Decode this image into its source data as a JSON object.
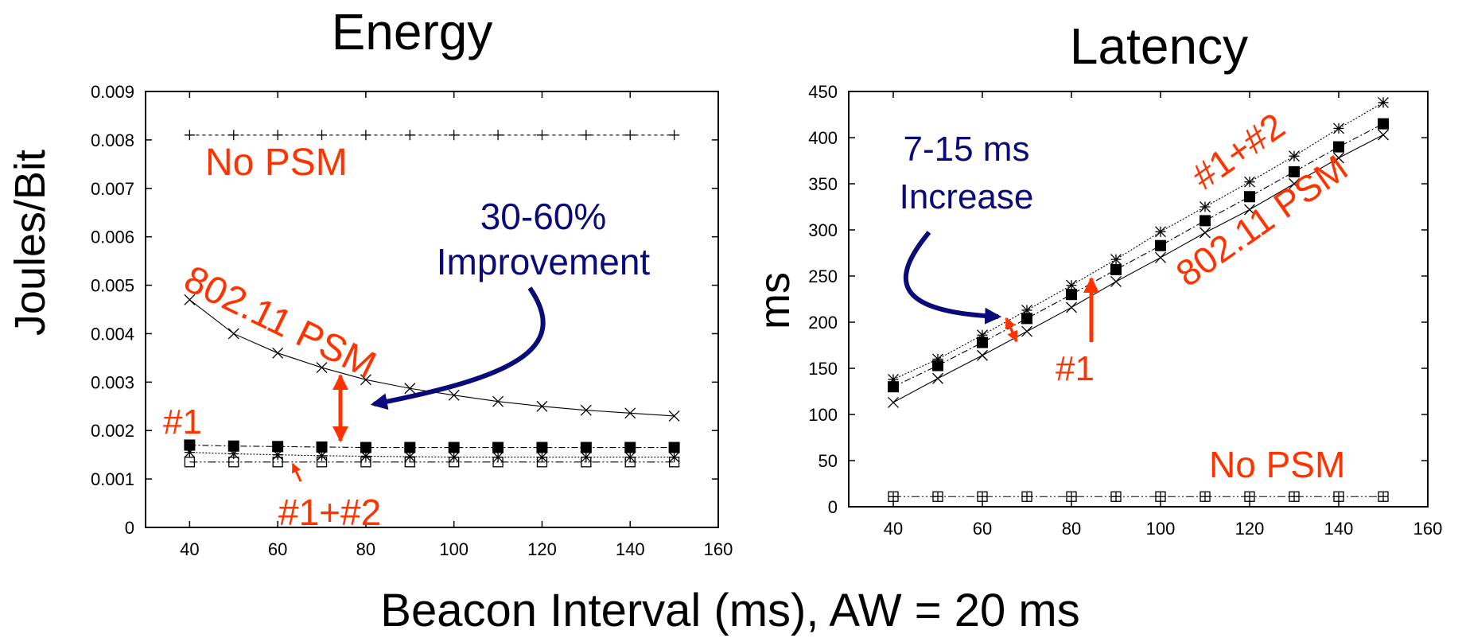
{
  "xlabel": "Beacon Interval (ms), AW = 20 ms",
  "colors": {
    "highlight": "#ff3300",
    "accent": "#0a0a78",
    "series": "#000000"
  },
  "chart_data": [
    {
      "type": "line",
      "title": "Energy",
      "ylabel": "Joules/Bit",
      "xlim": [
        30,
        160
      ],
      "ylim": [
        0,
        0.009
      ],
      "xticks": [
        40,
        60,
        80,
        100,
        120,
        140,
        160
      ],
      "yticks": [
        "0",
        "0.001",
        "0.002",
        "0.003",
        "0.004",
        "0.005",
        "0.006",
        "0.007",
        "0.008",
        "0.009"
      ],
      "x": [
        40,
        50,
        60,
        70,
        80,
        90,
        100,
        110,
        120,
        130,
        140,
        150
      ],
      "series": [
        {
          "marker": "plus",
          "dash": "4,4",
          "values": [
            0.0081,
            0.0081,
            0.0081,
            0.0081,
            0.0081,
            0.0081,
            0.0081,
            0.0081,
            0.0081,
            0.0081,
            0.0081,
            0.0081
          ]
        },
        {
          "marker": "cross",
          "dash": "",
          "values": [
            0.0047,
            0.004,
            0.0036,
            0.0033,
            0.00305,
            0.00287,
            0.00273,
            0.0026,
            0.0025,
            0.00242,
            0.00236,
            0.0023
          ]
        },
        {
          "marker": "filled-square",
          "dash": "8,3,2,3",
          "values": [
            0.0017,
            0.00168,
            0.00167,
            0.00166,
            0.00165,
            0.00165,
            0.00165,
            0.00165,
            0.00165,
            0.00165,
            0.00165,
            0.00165
          ]
        },
        {
          "marker": "asterisk",
          "dash": "2,2",
          "values": [
            0.00155,
            0.00152,
            0.0015,
            0.00148,
            0.00147,
            0.00146,
            0.00145,
            0.00145,
            0.00145,
            0.00145,
            0.00145,
            0.00145
          ]
        },
        {
          "marker": "open-square",
          "dash": "10,3,2,3,2,3",
          "values": [
            0.00135,
            0.00135,
            0.00135,
            0.00135,
            0.00135,
            0.00135,
            0.00135,
            0.00135,
            0.00135,
            0.00135,
            0.00135,
            0.00135
          ]
        }
      ],
      "annotations": {
        "no_psm": "No PSM",
        "psm": "802.11 PSM",
        "one": "#1",
        "one_two": "#1+#2",
        "improvement_line1": "30-60%",
        "improvement_line2": "Improvement"
      }
    },
    {
      "type": "line",
      "title": "Latency",
      "ylabel": "ms",
      "xlim": [
        30,
        160
      ],
      "ylim": [
        0,
        450
      ],
      "xticks": [
        40,
        60,
        80,
        100,
        120,
        140,
        160
      ],
      "yticks": [
        "0",
        "50",
        "100",
        "150",
        "200",
        "250",
        "300",
        "350",
        "400",
        "450"
      ],
      "x": [
        40,
        50,
        60,
        70,
        80,
        90,
        100,
        110,
        120,
        130,
        140,
        150
      ],
      "series": [
        {
          "marker": "asterisk",
          "dash": "2,2",
          "values": [
            138,
            160,
            186,
            213,
            240,
            268,
            298,
            325,
            352,
            380,
            410,
            438
          ]
        },
        {
          "marker": "filled-square",
          "dash": "8,3,2,3",
          "values": [
            130,
            153,
            178,
            204,
            230,
            257,
            283,
            310,
            336,
            363,
            390,
            415
          ]
        },
        {
          "marker": "cross",
          "dash": "",
          "values": [
            113,
            139,
            164,
            190,
            216,
            244,
            270,
            297,
            322,
            350,
            378,
            403
          ]
        },
        {
          "marker": "boxplus",
          "dash": "10,3,2,3,2,3",
          "values": [
            11,
            11,
            11,
            11,
            11,
            11,
            11,
            11,
            11,
            11,
            11,
            11
          ]
        }
      ],
      "annotations": {
        "one_two": "#1+#2",
        "psm": "802.11 PSM",
        "one": "#1",
        "no_psm": "No PSM",
        "increase_line1": "7-15 ms",
        "increase_line2": "Increase"
      }
    }
  ]
}
